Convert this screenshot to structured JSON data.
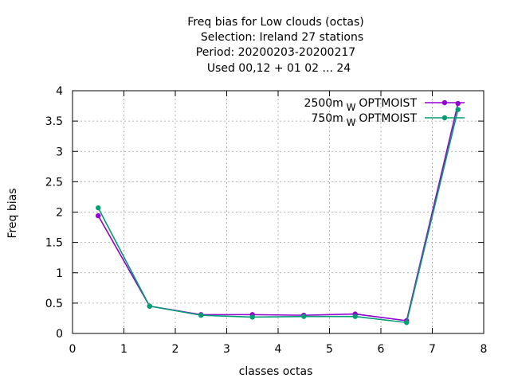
{
  "chart_data": {
    "type": "line",
    "title_lines": [
      "Freq bias  for Low clouds (octas)",
      "Selection: Ireland      27 stations",
      "Period: 20200203-20200217",
      "Used  00,12  + 01 02 ... 24"
    ],
    "xlabel": "classes octas",
    "ylabel": "Freq bias",
    "xlim": [
      0,
      8
    ],
    "ylim": [
      0,
      4
    ],
    "xticks": [
      "0",
      "1",
      "2",
      "3",
      "4",
      "5",
      "6",
      "7",
      "8"
    ],
    "yticks": [
      "0",
      "0.5",
      "1",
      "1.5",
      "2",
      "2.5",
      "3",
      "3.5",
      "4"
    ],
    "grid": true,
    "legend_position": "top-right",
    "x": [
      0.5,
      1.5,
      2.5,
      3.5,
      4.5,
      5.5,
      6.5,
      7.5
    ],
    "series": [
      {
        "name": "2500m",
        "subscript": "W",
        "suffix": "OPTMOIST",
        "color": "#9400d3",
        "values": [
          1.94,
          0.45,
          0.31,
          0.31,
          0.3,
          0.32,
          0.21,
          3.79
        ]
      },
      {
        "name": "750m",
        "subscript": "W",
        "suffix": "OPTMOIST",
        "color": "#009e73",
        "values": [
          2.07,
          0.45,
          0.3,
          0.27,
          0.28,
          0.28,
          0.18,
          3.69
        ]
      }
    ]
  }
}
